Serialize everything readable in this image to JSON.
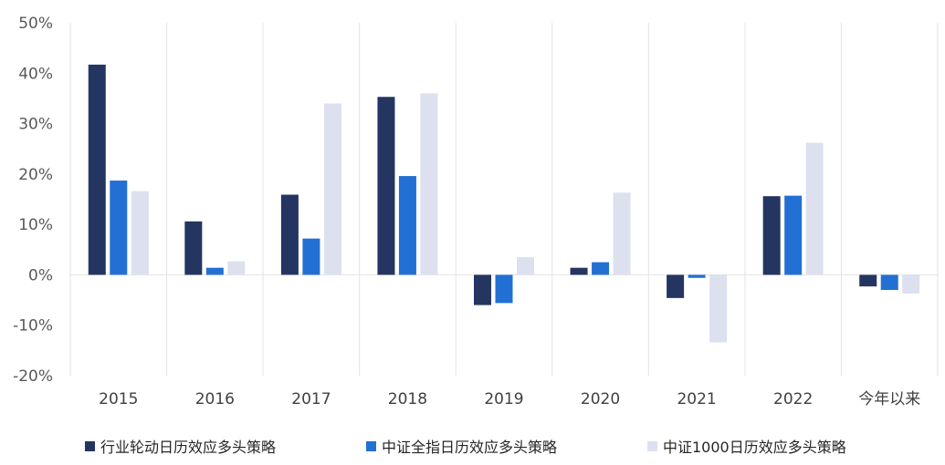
{
  "chart_data": {
    "type": "bar",
    "title": "",
    "xlabel": "",
    "ylabel": "",
    "ylim": [
      -20,
      50
    ],
    "yticks": [
      {
        "value": 50,
        "label": "50%"
      },
      {
        "value": 40,
        "label": "40%"
      },
      {
        "value": 30,
        "label": "30%"
      },
      {
        "value": 20,
        "label": "20%"
      },
      {
        "value": 10,
        "label": "10%"
      },
      {
        "value": 0,
        "label": "0%"
      },
      {
        "value": -10,
        "label": "-10%"
      },
      {
        "value": -20,
        "label": "-20%"
      }
    ],
    "categories": [
      "2015",
      "2016",
      "2017",
      "2018",
      "2019",
      "2020",
      "2021",
      "2022",
      "今年以来"
    ],
    "grid": "vertical category separators",
    "legend_position": "bottom",
    "series": [
      {
        "name": "行业轮动日历效应多头策略",
        "color": "#253561",
        "values": [
          41.7,
          10.6,
          15.9,
          35.3,
          -6.0,
          1.4,
          -4.6,
          15.6,
          -2.3
        ]
      },
      {
        "name": "中证全指日历效应多头策略",
        "color": "#2270D3",
        "values": [
          18.7,
          1.4,
          7.2,
          19.6,
          -5.6,
          2.5,
          -0.6,
          15.7,
          -3.0
        ]
      },
      {
        "name": "中证1000日历效应多头策略",
        "color": "#DDE0EF",
        "values": [
          16.6,
          2.7,
          34.0,
          36.0,
          3.5,
          16.3,
          -13.4,
          26.2,
          -3.7
        ]
      }
    ]
  }
}
